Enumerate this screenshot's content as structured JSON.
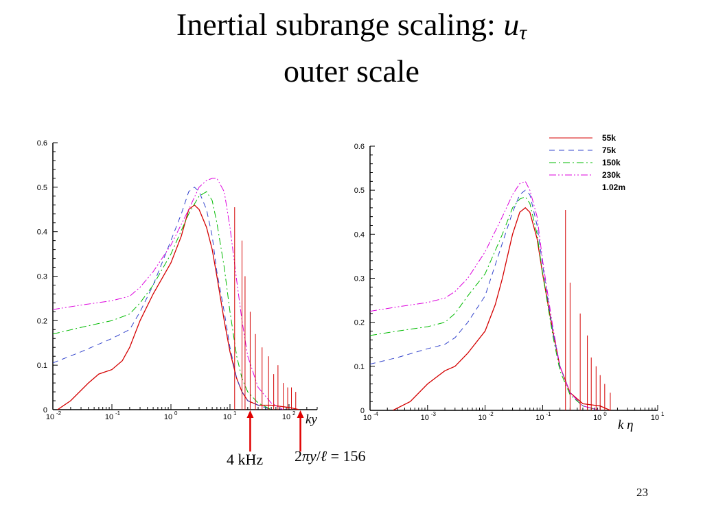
{
  "slide": {
    "title_line1_text": "Inertial subrange scaling: ",
    "title_symbol": "u",
    "title_symbol_sub": "τ",
    "title_line2": "outer scale",
    "page_number": "23"
  },
  "annotations": {
    "arrow1_label": "4 kHz",
    "arrow1_at_ky": 22,
    "arrow2_parts": [
      "2",
      "π",
      "y",
      "/",
      "ℓ",
      " = 156"
    ],
    "arrow2_at_ky": 156
  },
  "chart_data": [
    {
      "type": "line",
      "x_scale": "log",
      "xlim": [
        0.01,
        300
      ],
      "ylim": [
        0,
        0.6
      ],
      "yticks": [
        "0",
        "0.1",
        "0.2",
        "0.3",
        "0.4",
        "0.5",
        "0.6"
      ],
      "xtick_base": "10",
      "xtick_exponents": [
        "-2",
        "-1",
        "0",
        "1",
        "2"
      ],
      "xlabel": "ky",
      "series": [
        {
          "name": "55k",
          "color": "#d40000",
          "dash": "solid",
          "points": [
            [
              0.012,
              0.0
            ],
            [
              0.02,
              0.02
            ],
            [
              0.04,
              0.06
            ],
            [
              0.06,
              0.08
            ],
            [
              0.1,
              0.09
            ],
            [
              0.15,
              0.11
            ],
            [
              0.2,
              0.14
            ],
            [
              0.3,
              0.2
            ],
            [
              0.5,
              0.26
            ],
            [
              1,
              0.33
            ],
            [
              1.5,
              0.39
            ],
            [
              2,
              0.45
            ],
            [
              2.5,
              0.46
            ],
            [
              3,
              0.45
            ],
            [
              4,
              0.41
            ],
            [
              5,
              0.36
            ],
            [
              6,
              0.3
            ],
            [
              8,
              0.2
            ],
            [
              10,
              0.13
            ],
            [
              13,
              0.07
            ],
            [
              16,
              0.04
            ],
            [
              20,
              0.02
            ],
            [
              30,
              0.01
            ],
            [
              50,
              0.01
            ],
            [
              100,
              0.005
            ],
            [
              150,
              0.0
            ]
          ]
        },
        {
          "name": "75k",
          "color": "#3344cc",
          "dash": "8,6",
          "points": [
            [
              0.01,
              0.105
            ],
            [
              0.03,
              0.13
            ],
            [
              0.1,
              0.16
            ],
            [
              0.2,
              0.18
            ],
            [
              0.3,
              0.22
            ],
            [
              0.5,
              0.28
            ],
            [
              1,
              0.38
            ],
            [
              1.5,
              0.44
            ],
            [
              2,
              0.49
            ],
            [
              2.5,
              0.5
            ],
            [
              3,
              0.49
            ],
            [
              4,
              0.45
            ],
            [
              5,
              0.39
            ],
            [
              6,
              0.31
            ],
            [
              8,
              0.22
            ],
            [
              10,
              0.14
            ],
            [
              13,
              0.07
            ],
            [
              16,
              0.04
            ],
            [
              20,
              0.02
            ],
            [
              30,
              0.01
            ],
            [
              50,
              0.0
            ]
          ]
        },
        {
          "name": "150k",
          "color": "#00bb00",
          "dash": "10,4,2,4",
          "points": [
            [
              0.01,
              0.17
            ],
            [
              0.03,
              0.185
            ],
            [
              0.1,
              0.2
            ],
            [
              0.2,
              0.215
            ],
            [
              0.3,
              0.24
            ],
            [
              0.5,
              0.28
            ],
            [
              1,
              0.35
            ],
            [
              2,
              0.44
            ],
            [
              3,
              0.48
            ],
            [
              4,
              0.49
            ],
            [
              5,
              0.47
            ],
            [
              6,
              0.42
            ],
            [
              8,
              0.32
            ],
            [
              10,
              0.22
            ],
            [
              13,
              0.12
            ],
            [
              16,
              0.07
            ],
            [
              20,
              0.04
            ],
            [
              30,
              0.015
            ],
            [
              50,
              0.0
            ]
          ]
        },
        {
          "name": "230k",
          "color": "#dd00dd",
          "dash": "10,3,2,3,2,3",
          "points": [
            [
              0.01,
              0.225
            ],
            [
              0.03,
              0.235
            ],
            [
              0.1,
              0.245
            ],
            [
              0.2,
              0.255
            ],
            [
              0.3,
              0.275
            ],
            [
              0.5,
              0.31
            ],
            [
              1,
              0.37
            ],
            [
              2,
              0.45
            ],
            [
              3,
              0.5
            ],
            [
              4,
              0.515
            ],
            [
              5,
              0.52
            ],
            [
              6,
              0.52
            ],
            [
              8,
              0.49
            ],
            [
              10,
              0.41
            ],
            [
              13,
              0.29
            ],
            [
              16,
              0.2
            ],
            [
              20,
              0.12
            ],
            [
              30,
              0.05
            ],
            [
              50,
              0.015
            ],
            [
              80,
              0.0
            ]
          ]
        }
      ],
      "spikes": [
        [
          12,
          0.455
        ],
        [
          16,
          0.38
        ],
        [
          18,
          0.3
        ],
        [
          22,
          0.22
        ],
        [
          27,
          0.17
        ],
        [
          35,
          0.14
        ],
        [
          45,
          0.12
        ],
        [
          55,
          0.08
        ],
        [
          65,
          0.1
        ],
        [
          80,
          0.06
        ],
        [
          95,
          0.05
        ],
        [
          110,
          0.05
        ],
        [
          130,
          0.04
        ]
      ]
    },
    {
      "type": "line",
      "x_scale": "log",
      "xlim": [
        0.0001,
        10
      ],
      "ylim": [
        0,
        0.6
      ],
      "yticks": [
        "0",
        "0.1",
        "0.2",
        "0.3",
        "0.4",
        "0.5",
        "0.6"
      ],
      "xtick_base": "10",
      "xtick_exponents": [
        "-4",
        "-3",
        "-2",
        "-1",
        "0",
        "1"
      ],
      "xlabel": "k η",
      "legend": {
        "position": "top-right",
        "entries": [
          "55k",
          "75k",
          "150k",
          "230k",
          "1.02m"
        ]
      },
      "series": [
        {
          "name": "55k",
          "color": "#d40000",
          "dash": "solid",
          "points": [
            [
              0.00025,
              0.0
            ],
            [
              0.0005,
              0.02
            ],
            [
              0.001,
              0.06
            ],
            [
              0.002,
              0.09
            ],
            [
              0.003,
              0.1
            ],
            [
              0.005,
              0.13
            ],
            [
              0.01,
              0.18
            ],
            [
              0.015,
              0.24
            ],
            [
              0.02,
              0.3
            ],
            [
              0.03,
              0.4
            ],
            [
              0.04,
              0.45
            ],
            [
              0.05,
              0.46
            ],
            [
              0.06,
              0.45
            ],
            [
              0.08,
              0.39
            ],
            [
              0.1,
              0.31
            ],
            [
              0.15,
              0.18
            ],
            [
              0.2,
              0.1
            ],
            [
              0.3,
              0.04
            ],
            [
              0.5,
              0.015
            ],
            [
              1,
              0.01
            ],
            [
              1.5,
              0.0
            ]
          ]
        },
        {
          "name": "75k",
          "color": "#3344cc",
          "dash": "8,6",
          "points": [
            [
              0.0001,
              0.105
            ],
            [
              0.0003,
              0.12
            ],
            [
              0.001,
              0.14
            ],
            [
              0.002,
              0.15
            ],
            [
              0.003,
              0.165
            ],
            [
              0.005,
              0.2
            ],
            [
              0.01,
              0.26
            ],
            [
              0.02,
              0.38
            ],
            [
              0.03,
              0.45
            ],
            [
              0.04,
              0.49
            ],
            [
              0.05,
              0.5
            ],
            [
              0.06,
              0.49
            ],
            [
              0.08,
              0.42
            ],
            [
              0.1,
              0.33
            ],
            [
              0.15,
              0.18
            ],
            [
              0.2,
              0.1
            ],
            [
              0.3,
              0.04
            ],
            [
              0.5,
              0.01
            ],
            [
              1,
              0.0
            ]
          ]
        },
        {
          "name": "150k",
          "color": "#00bb00",
          "dash": "10,4,2,4",
          "points": [
            [
              0.0001,
              0.17
            ],
            [
              0.0003,
              0.18
            ],
            [
              0.001,
              0.19
            ],
            [
              0.002,
              0.2
            ],
            [
              0.003,
              0.22
            ],
            [
              0.005,
              0.26
            ],
            [
              0.01,
              0.31
            ],
            [
              0.02,
              0.4
            ],
            [
              0.03,
              0.46
            ],
            [
              0.04,
              0.48
            ],
            [
              0.05,
              0.485
            ],
            [
              0.06,
              0.47
            ],
            [
              0.08,
              0.4
            ],
            [
              0.1,
              0.31
            ],
            [
              0.15,
              0.17
            ],
            [
              0.2,
              0.09
            ],
            [
              0.3,
              0.035
            ],
            [
              0.5,
              0.01
            ],
            [
              1,
              0.0
            ]
          ]
        },
        {
          "name": "230k",
          "color": "#dd00dd",
          "dash": "10,3,2,3,2,3",
          "points": [
            [
              0.0001,
              0.225
            ],
            [
              0.0003,
              0.235
            ],
            [
              0.001,
              0.245
            ],
            [
              0.002,
              0.255
            ],
            [
              0.003,
              0.27
            ],
            [
              0.005,
              0.3
            ],
            [
              0.01,
              0.36
            ],
            [
              0.02,
              0.44
            ],
            [
              0.03,
              0.49
            ],
            [
              0.04,
              0.515
            ],
            [
              0.05,
              0.52
            ],
            [
              0.06,
              0.5
            ],
            [
              0.08,
              0.44
            ],
            [
              0.1,
              0.34
            ],
            [
              0.15,
              0.19
            ],
            [
              0.2,
              0.1
            ],
            [
              0.3,
              0.04
            ],
            [
              0.5,
              0.01
            ],
            [
              1,
              0.0
            ]
          ]
        }
      ],
      "spikes": [
        [
          0.25,
          0.455
        ],
        [
          0.3,
          0.29
        ],
        [
          0.45,
          0.22
        ],
        [
          0.6,
          0.17
        ],
        [
          0.7,
          0.12
        ],
        [
          0.85,
          0.1
        ],
        [
          1,
          0.08
        ],
        [
          1.2,
          0.06
        ],
        [
          1.5,
          0.04
        ]
      ]
    }
  ]
}
